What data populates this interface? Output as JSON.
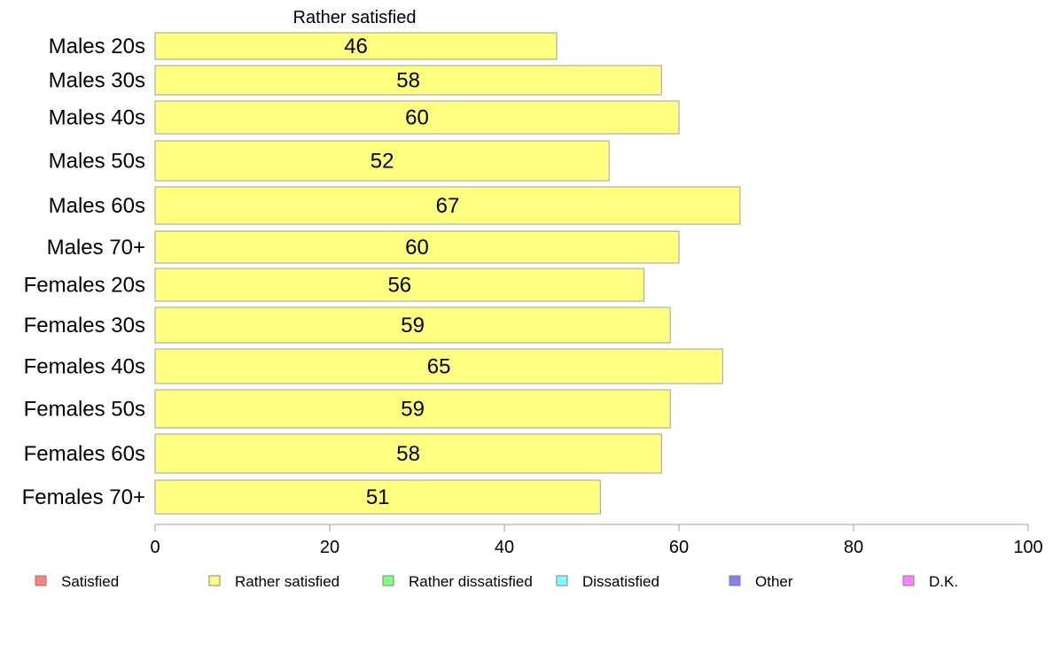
{
  "chart_data": {
    "type": "bar",
    "orientation": "horizontal",
    "series_title": "Rather satisfied",
    "categories": [
      "Males 20s",
      "Males 30s",
      "Males 40s",
      "Males 50s",
      "Males 60s",
      "Males 70+",
      "Females 20s",
      "Females 30s",
      "Females 40s",
      "Females 50s",
      "Females 60s",
      "Females 70+"
    ],
    "values": [
      46,
      58,
      60,
      52,
      67,
      60,
      56,
      59,
      65,
      59,
      58,
      51
    ],
    "xlim": [
      0,
      100
    ],
    "xticks": [
      0,
      20,
      40,
      60,
      80,
      100
    ],
    "bar_color": "#ffff80",
    "bar_stroke": "#a0a0a0",
    "grid": false,
    "legend_position": "bottom",
    "legend": [
      {
        "label": "Satisfied",
        "color": "#ff8080"
      },
      {
        "label": "Rather satisfied",
        "color": "#ffff80"
      },
      {
        "label": "Rather dissatisfied",
        "color": "#80ff80"
      },
      {
        "label": "Dissatisfied",
        "color": "#80ffff"
      },
      {
        "label": "Other",
        "color": "#8080ff"
      },
      {
        "label": "D.K.",
        "color": "#ff80ff"
      }
    ]
  }
}
